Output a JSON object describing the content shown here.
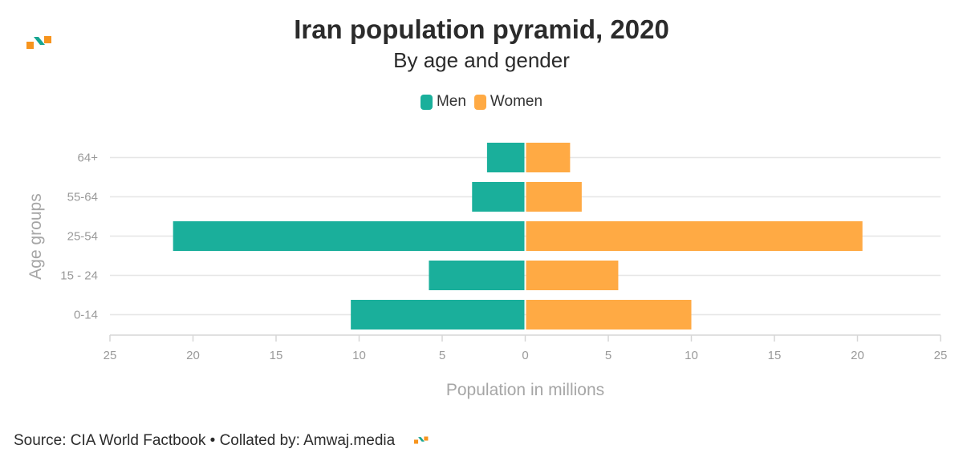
{
  "chart_data": {
    "type": "bar",
    "orientation": "horizontal",
    "title": "Iran population pyramid, 2020",
    "subtitle": "By age and gender",
    "categories": [
      "64+",
      "55-64",
      "25-54",
      "15 - 24",
      "0-14"
    ],
    "series": [
      {
        "name": "Men",
        "color": "#1aaf9b",
        "values": [
          2.3,
          3.2,
          21.2,
          5.8,
          10.5
        ]
      },
      {
        "name": "Women",
        "color": "#ffaa44",
        "values": [
          2.7,
          3.4,
          20.3,
          5.6,
          10.0
        ]
      }
    ],
    "xlabel": "Population in millions",
    "ylabel": "Age groups",
    "xlim": [
      -25,
      25
    ],
    "xticks": [
      -25,
      -20,
      -15,
      -10,
      -5,
      0,
      5,
      10,
      15,
      20,
      25
    ],
    "xtick_labels": [
      "25",
      "20",
      "15",
      "10",
      "5",
      "0",
      "5",
      "10",
      "15",
      "20",
      "25"
    ],
    "grid": true,
    "legend_position": "top-center"
  },
  "footer": {
    "source": "Source: CIA World Factbook • Collated by: Amwaj.media"
  },
  "colors": {
    "logo_orange": "#f7941d",
    "logo_teal": "#16a591"
  }
}
